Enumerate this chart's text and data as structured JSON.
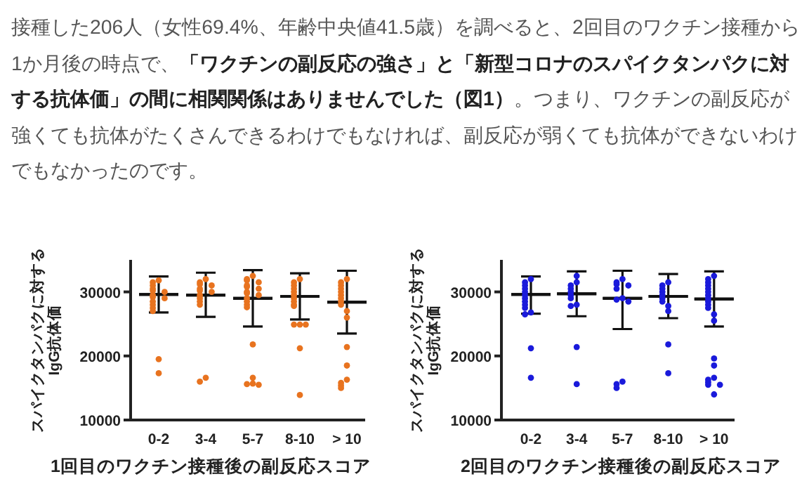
{
  "chart_data": [
    {
      "type": "other",
      "annotations": [
        "接種した206人（女性69.4%、年齢中央値41.5歳）を調べると、2回目のワクチン接種から1か月後の時点で、**「ワクチンの副反応の強さ」と「新型コロナのスパイクタンパクに対する抗体価」の間に相関関係はありませんでした（図1）**。つまり、ワクチンの副反応が強くても抗体がたくさんできるわけでもなければ、副反応が弱くても抗体ができないわけでもなかったのです。"
      ]
    },
    {
      "type": "scatter",
      "categories": [
        "0-2",
        "3-4",
        "5-7",
        "8-10",
        "> 10"
      ],
      "xlabel": "1回目のワクチン接種後の副反応スコア",
      "ylabel": "スパイクタンパクに対する\nIgG抗体価",
      "ylim": [
        10000,
        35000
      ],
      "yticks": [
        10000,
        20000,
        30000
      ],
      "series": [
        {
          "type": "scatter",
          "marker": "circle",
          "color": "#e8731f",
          "x": [
            "0-2",
            "0-2",
            "0-2",
            "0-2",
            "0-2",
            "0-2",
            "0-2",
            "0-2",
            "0-2",
            "0-2",
            "0-2",
            "0-2",
            "0-2",
            "0-2",
            "0-2",
            "3-4",
            "3-4",
            "3-4",
            "3-4",
            "3-4",
            "3-4",
            "3-4",
            "3-4",
            "3-4",
            "3-4",
            "3-4",
            "3-4",
            "3-4",
            "5-7",
            "5-7",
            "5-7",
            "5-7",
            "5-7",
            "5-7",
            "5-7",
            "5-7",
            "5-7",
            "5-7",
            "5-7",
            "5-7",
            "5-7",
            "5-7",
            "5-7",
            "5-7",
            "5-7",
            "5-7",
            "5-7",
            "8-10",
            "8-10",
            "8-10",
            "8-10",
            "8-10",
            "8-10",
            "8-10",
            "8-10",
            "8-10",
            "8-10",
            "8-10",
            "8-10",
            "8-10",
            "8-10",
            "8-10",
            "> 10",
            "> 10",
            "> 10",
            "> 10",
            "> 10",
            "> 10",
            "> 10",
            "> 10",
            "> 10",
            "> 10",
            "> 10",
            "> 10",
            "> 10",
            "> 10",
            "> 10",
            "> 10",
            "> 10"
          ],
          "values": [
            31800,
            31500,
            31000,
            30500,
            30200,
            30000,
            29500,
            29200,
            29000,
            28500,
            28000,
            27500,
            27000,
            19500,
            17300,
            32000,
            31500,
            31200,
            31000,
            30500,
            30200,
            30000,
            29500,
            29000,
            28500,
            28000,
            16600,
            16000,
            32500,
            32000,
            31800,
            31500,
            31000,
            30800,
            30500,
            30000,
            29800,
            29500,
            29000,
            28500,
            28000,
            27600,
            21800,
            16600,
            15700,
            15600,
            15500,
            32000,
            31500,
            31000,
            30500,
            30000,
            29500,
            29000,
            28500,
            28000,
            27800,
            24900,
            24900,
            24900,
            21200,
            13900,
            32000,
            31500,
            31000,
            30500,
            30000,
            29500,
            29000,
            28500,
            28000,
            27000,
            26000,
            21400,
            18500,
            16300,
            15800,
            15400,
            15000
          ]
        },
        {
          "type": "box",
          "color": "#111111",
          "boxes": [
            {
              "low": 26800,
              "q1": 29600,
              "median": 29600,
              "q3": 29600,
              "high": 32400
            },
            {
              "low": 26100,
              "q1": 29500,
              "median": 29500,
              "q3": 29500,
              "high": 33000
            },
            {
              "low": 24600,
              "q1": 29000,
              "median": 29000,
              "q3": 29000,
              "high": 33400
            },
            {
              "low": 25700,
              "q1": 29300,
              "median": 29300,
              "q3": 29300,
              "high": 32900
            },
            {
              "low": 23500,
              "q1": 28400,
              "median": 28400,
              "q3": 28400,
              "high": 33300
            }
          ]
        }
      ]
    },
    {
      "type": "scatter",
      "categories": [
        "0-2",
        "3-4",
        "5-7",
        "8-10",
        "> 10"
      ],
      "xlabel": "2回目のワクチン接種後の副反応スコア",
      "ylabel": "スパイクタンパクに対する\nIgG抗体価",
      "ylim": [
        10000,
        35000
      ],
      "yticks": [
        10000,
        20000,
        30000
      ],
      "series": [
        {
          "type": "scatter",
          "marker": "circle",
          "color": "#1a1adb",
          "x": [
            "0-2",
            "0-2",
            "0-2",
            "0-2",
            "0-2",
            "0-2",
            "0-2",
            "0-2",
            "0-2",
            "0-2",
            "0-2",
            "0-2",
            "0-2",
            "0-2",
            "3-4",
            "3-4",
            "3-4",
            "3-4",
            "3-4",
            "3-4",
            "3-4",
            "3-4",
            "3-4",
            "3-4",
            "3-4",
            "5-7",
            "5-7",
            "5-7",
            "5-7",
            "5-7",
            "5-7",
            "5-7",
            "5-7",
            "5-7",
            "5-7",
            "5-7",
            "8-10",
            "8-10",
            "8-10",
            "8-10",
            "8-10",
            "8-10",
            "8-10",
            "8-10",
            "8-10",
            "8-10",
            "8-10",
            "> 10",
            "> 10",
            "> 10",
            "> 10",
            "> 10",
            "> 10",
            "> 10",
            "> 10",
            "> 10",
            "> 10",
            "> 10",
            "> 10",
            "> 10",
            "> 10",
            "> 10",
            "> 10",
            "> 10",
            "> 10",
            "> 10",
            "> 10",
            "> 10"
          ],
          "values": [
            32000,
            31500,
            31000,
            30500,
            30000,
            29500,
            29000,
            28500,
            28000,
            27500,
            26800,
            26500,
            21200,
            16600,
            32500,
            31500,
            31000,
            30500,
            30000,
            29500,
            29000,
            28000,
            27800,
            21400,
            15600,
            32000,
            31500,
            31200,
            31000,
            30500,
            29000,
            28800,
            28500,
            16000,
            15600,
            15000,
            31500,
            31000,
            30500,
            30000,
            29500,
            29000,
            28500,
            27800,
            27000,
            21800,
            17300,
            32500,
            32000,
            31500,
            31000,
            30500,
            30000,
            29500,
            29000,
            28500,
            28000,
            27500,
            26500,
            25500,
            19600,
            18500,
            16600,
            16300,
            15900,
            15500,
            15500,
            14000
          ]
        },
        {
          "type": "box",
          "color": "#111111",
          "boxes": [
            {
              "low": 26600,
              "q1": 29600,
              "median": 29600,
              "q3": 29600,
              "high": 32400
            },
            {
              "low": 26200,
              "q1": 29700,
              "median": 29700,
              "q3": 29700,
              "high": 33200
            },
            {
              "low": 24200,
              "q1": 29000,
              "median": 29000,
              "q3": 29000,
              "high": 33300
            },
            {
              "low": 25900,
              "q1": 29300,
              "median": 29300,
              "q3": 29300,
              "high": 32800
            },
            {
              "low": 24600,
              "q1": 28900,
              "median": 28900,
              "q3": 28900,
              "high": 33200
            }
          ]
        }
      ]
    }
  ]
}
